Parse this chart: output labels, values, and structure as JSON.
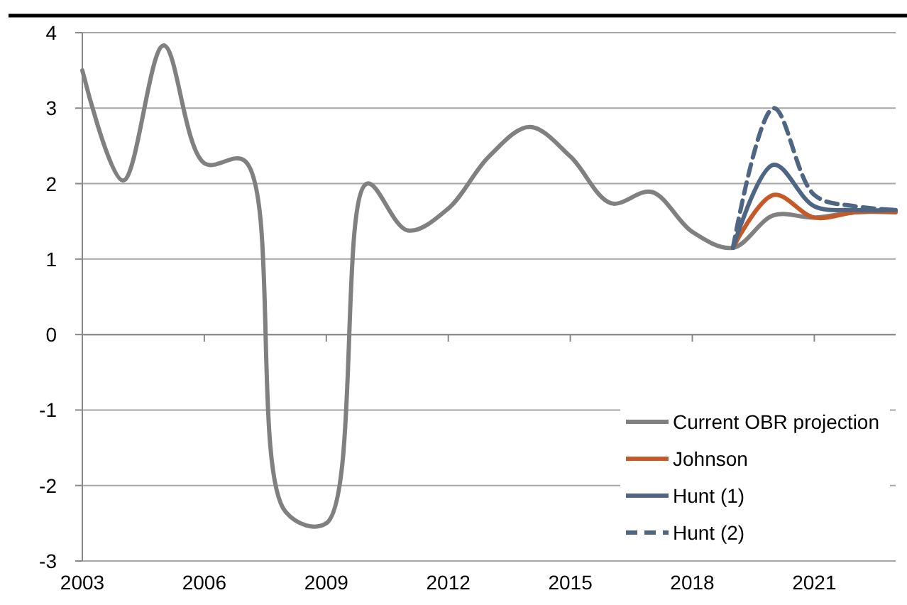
{
  "chart_data": {
    "type": "line",
    "xlim": [
      2003,
      2023
    ],
    "xticks": [
      2003,
      2006,
      2009,
      2012,
      2015,
      2018,
      2021
    ],
    "ylim": [
      -3,
      4
    ],
    "yticks": [
      -3,
      -2,
      -1,
      0,
      1,
      2,
      3,
      4
    ],
    "grid": "y",
    "legend": "bottom right",
    "series": [
      {
        "name": "Current OBR projection",
        "color": "#808080",
        "line_style": "solid",
        "x": [
          2003,
          2004,
          2005,
          2006,
          2007,
          2008,
          2009,
          2010,
          2011,
          2012,
          2013,
          2014,
          2015,
          2016,
          2017,
          2018,
          2019,
          2020,
          2021,
          2022,
          2023
        ],
        "values": [
          3.5,
          2.04,
          3.83,
          2.27,
          2.3,
          -2.35,
          -2.5,
          2.0,
          1.38,
          1.67,
          2.36,
          2.75,
          2.36,
          1.74,
          1.89,
          1.36,
          1.15,
          1.58,
          1.55,
          1.62,
          1.63
        ]
      },
      {
        "name": "Johnson",
        "color": "#c55a28",
        "line_style": "solid",
        "x": [
          2019,
          2020,
          2021,
          2022,
          2023
        ],
        "values": [
          1.15,
          1.85,
          1.55,
          1.62,
          1.62
        ]
      },
      {
        "name": "Hunt (1)",
        "color": "#4f6584",
        "line_style": "solid",
        "x": [
          2019,
          2020,
          2021,
          2022,
          2023
        ],
        "values": [
          1.15,
          2.25,
          1.7,
          1.65,
          1.65
        ]
      },
      {
        "name": "Hunt (2)",
        "color": "#4f6584",
        "line_style": "dashed",
        "x": [
          2019,
          2020,
          2021,
          2022,
          2023
        ],
        "values": [
          1.15,
          3.0,
          1.85,
          1.7,
          1.65
        ]
      }
    ]
  }
}
